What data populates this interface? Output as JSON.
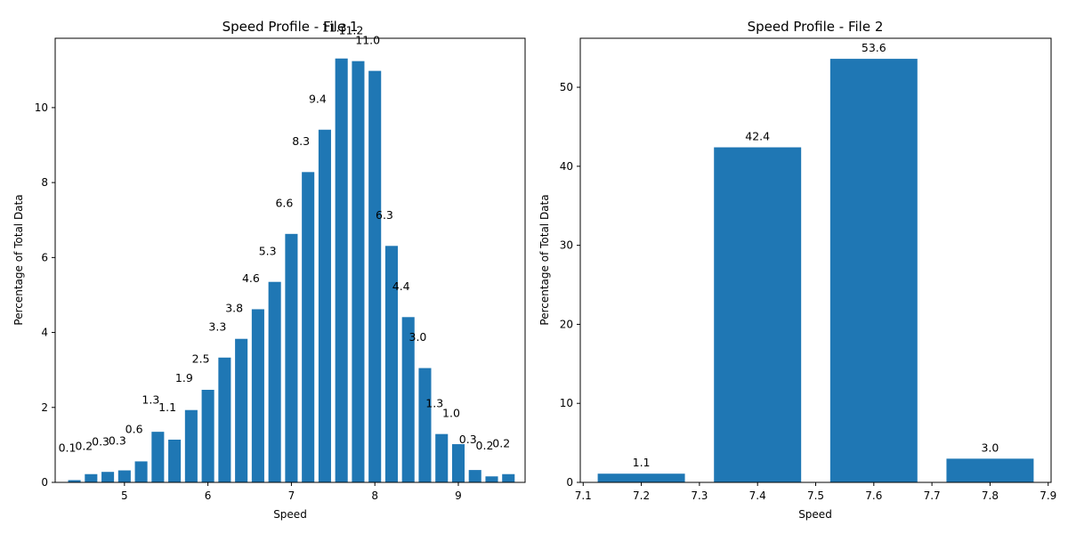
{
  "chart_data": [
    {
      "type": "bar",
      "title": "Speed Profile - File 1",
      "xlabel": "Speed",
      "ylabel": "Percentage of Total Data",
      "xlim": [
        4.17,
        9.8
      ],
      "ylim": [
        0,
        11.85
      ],
      "bar_width": 0.15,
      "x": [
        4.4,
        4.6,
        4.8,
        5.0,
        5.2,
        5.4,
        5.6,
        5.8,
        6.0,
        6.2,
        6.4,
        6.6,
        6.8,
        7.0,
        7.2,
        7.4,
        7.6,
        7.8,
        8.0,
        8.2,
        8.4,
        8.6,
        8.8,
        9.0,
        9.2,
        9.4,
        9.6
      ],
      "values": [
        0.06,
        0.22,
        0.28,
        0.32,
        0.56,
        1.35,
        1.14,
        1.93,
        2.47,
        3.33,
        3.83,
        4.62,
        5.35,
        6.63,
        8.28,
        9.41,
        11.31,
        11.24,
        10.98,
        6.31,
        4.41,
        3.05,
        1.29,
        1.02,
        0.33,
        0.16,
        0.22
      ],
      "data_labels": [
        "0.1",
        "0.2",
        "0.3",
        "0.3",
        "0.6",
        "1.3",
        "1.1",
        "1.9",
        "2.5",
        "3.3",
        "3.8",
        "4.6",
        "5.3",
        "6.6",
        "8.3",
        "9.4",
        "11.3",
        "11.2",
        "11.0",
        "6.3",
        "4.4",
        "3.0",
        "1.3",
        "1.0",
        "0.3",
        "0.2",
        "0.2"
      ],
      "label_offsets": [
        1.05,
        0.9,
        0.98,
        0.95,
        1.05,
        1.05,
        1.05,
        1.05,
        1.0,
        1.0,
        1.0,
        1.0,
        1.0,
        1.0,
        1.0,
        1.0,
        1.0,
        1.0,
        1.0,
        1.0,
        1.0,
        1.0,
        1.0,
        1.0,
        1.0,
        1.0,
        1.0
      ],
      "xticks": [
        5,
        6,
        7,
        8,
        9
      ],
      "yticks": [
        0,
        2,
        4,
        6,
        8,
        10
      ],
      "color": "#1f77b4"
    },
    {
      "type": "bar",
      "title": "Speed Profile - File 2",
      "xlabel": "Speed",
      "ylabel": "Percentage of Total Data",
      "xlim": [
        7.095,
        7.905
      ],
      "ylim": [
        0,
        56.2
      ],
      "bar_width": 0.15,
      "x": [
        7.2,
        7.4,
        7.6,
        7.8
      ],
      "values": [
        1.1,
        42.4,
        53.6,
        3.0
      ],
      "data_labels": [
        "1.1",
        "42.4",
        "53.6",
        "3.0"
      ],
      "xticks": [
        7.1,
        7.2,
        7.3,
        7.4,
        7.5,
        7.6,
        7.7,
        7.8,
        7.9
      ],
      "yticks": [
        0,
        10,
        20,
        30,
        40,
        50
      ],
      "color": "#1f77b4"
    }
  ]
}
